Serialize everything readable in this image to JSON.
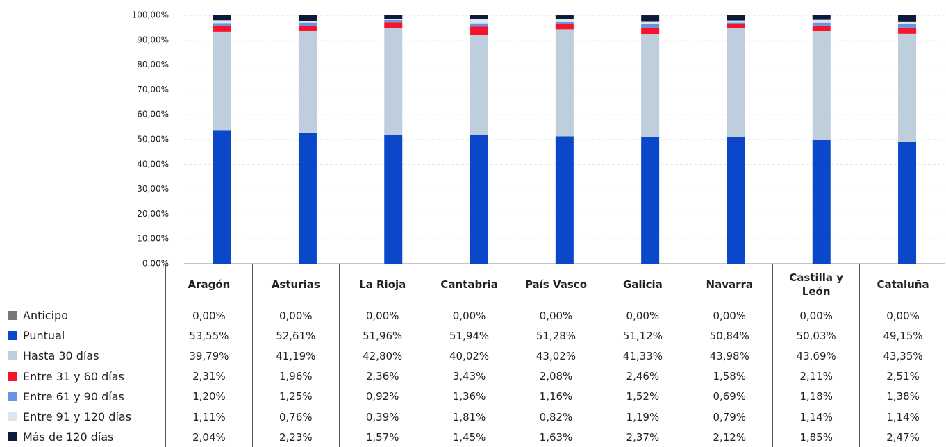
{
  "chart_data": {
    "type": "stacked_bar",
    "categories": [
      "Aragón",
      "Asturias",
      "La Rioja",
      "Cantabria",
      "País Vasco",
      "Galicia",
      "Navarra",
      "Castilla y León",
      "Cataluña"
    ],
    "ylim": [
      0,
      100
    ],
    "yticks": [
      {
        "value": 0,
        "label": "0,00%"
      },
      {
        "value": 10,
        "label": "10,00%"
      },
      {
        "value": 20,
        "label": "20,00%"
      },
      {
        "value": 30,
        "label": "30,00%"
      },
      {
        "value": 40,
        "label": "40,00%"
      },
      {
        "value": 50,
        "label": "50,00%"
      },
      {
        "value": 60,
        "label": "60,00%"
      },
      {
        "value": 70,
        "label": "70,00%"
      },
      {
        "value": 80,
        "label": "80,00%"
      },
      {
        "value": 90,
        "label": "90,00%"
      },
      {
        "value": 100,
        "label": "100,00%"
      }
    ],
    "grid": true,
    "series": [
      {
        "name": "Anticipo",
        "color": "#77777c",
        "values": [
          0,
          0,
          0,
          0,
          0,
          0,
          0,
          0,
          0
        ],
        "value_labels": [
          "0,00%",
          "0,00%",
          "0,00%",
          "0,00%",
          "0,00%",
          "0,00%",
          "0,00%",
          "0,00%",
          "0,00%"
        ]
      },
      {
        "name": "Puntual",
        "color": "#0a47c9",
        "values": [
          53.55,
          52.61,
          51.96,
          51.94,
          51.28,
          51.12,
          50.84,
          50.03,
          49.15
        ],
        "value_labels": [
          "53,55%",
          "52,61%",
          "51,96%",
          "51,94%",
          "51,28%",
          "51,12%",
          "50,84%",
          "50,03%",
          "49,15%"
        ]
      },
      {
        "name": "Hasta 30 días",
        "color": "#bfcedc",
        "values": [
          39.79,
          41.19,
          42.8,
          40.02,
          43.02,
          41.33,
          43.98,
          43.69,
          43.35
        ],
        "value_labels": [
          "39,79%",
          "41,19%",
          "42,80%",
          "40,02%",
          "43,02%",
          "41,33%",
          "43,98%",
          "43,69%",
          "43,35%"
        ]
      },
      {
        "name": "Entre 31 y 60 días",
        "color": "#f5142a",
        "values": [
          2.31,
          1.96,
          2.36,
          3.43,
          2.08,
          2.46,
          1.58,
          2.11,
          2.51
        ],
        "value_labels": [
          "2,31%",
          "1,96%",
          "2,36%",
          "3,43%",
          "2,08%",
          "2,46%",
          "1,58%",
          "2,11%",
          "2,51%"
        ]
      },
      {
        "name": "Entre 61 y 90 días",
        "color": "#6b93e0",
        "values": [
          1.2,
          1.25,
          0.92,
          1.36,
          1.16,
          1.52,
          0.69,
          1.18,
          1.38
        ],
        "value_labels": [
          "1,20%",
          "1,25%",
          "0,92%",
          "1,36%",
          "1,16%",
          "1,52%",
          "0,69%",
          "1,18%",
          "1,38%"
        ]
      },
      {
        "name": "Entre 91 y 120 días",
        "color": "#dce5ee",
        "values": [
          1.11,
          0.76,
          0.39,
          1.81,
          0.82,
          1.19,
          0.79,
          1.14,
          1.14
        ],
        "value_labels": [
          "1,11%",
          "0,76%",
          "0,39%",
          "1,81%",
          "0,82%",
          "1,19%",
          "0,79%",
          "1,14%",
          "1,14%"
        ]
      },
      {
        "name": "Más de 120 días",
        "color": "#0e1a3c",
        "values": [
          2.04,
          2.23,
          1.57,
          1.45,
          1.63,
          2.37,
          2.12,
          1.85,
          2.47
        ],
        "value_labels": [
          "2,04%",
          "2,23%",
          "1,57%",
          "1,45%",
          "1,63%",
          "2,37%",
          "2,12%",
          "1,85%",
          "2,47%"
        ]
      }
    ]
  }
}
